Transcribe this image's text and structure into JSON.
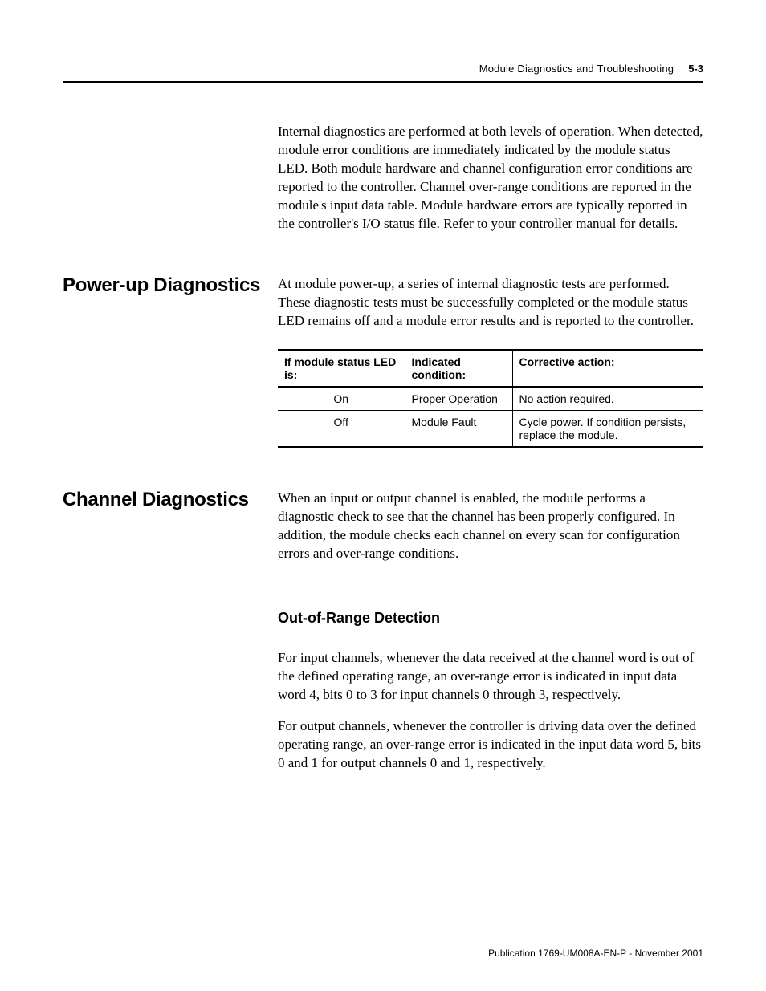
{
  "header": {
    "running_title": "Module Diagnostics and Troubleshooting",
    "page_number": "5-3"
  },
  "intro": {
    "paragraph": "Internal diagnostics are performed at both levels of operation. When detected, module error conditions are immediately indicated by the module status LED. Both module hardware and channel configuration error conditions are reported to the controller. Channel over-range conditions are reported in the module's input data table. Module hardware errors are typically reported in the controller's I/O status file. Refer to your controller manual for details."
  },
  "powerup": {
    "heading": "Power-up Diagnostics",
    "paragraph": "At module power-up, a series of internal diagnostic tests are performed. These diagnostic tests must be successfully completed or the module status LED remains off and a module error results and is reported to the controller.",
    "table": {
      "columns": [
        "If module status LED is:",
        "Indicated condition:",
        "Corrective action:"
      ],
      "rows": [
        [
          "On",
          "Proper Operation",
          "No action required."
        ],
        [
          "Off",
          "Module Fault",
          "Cycle power. If condition persists, replace the module."
        ]
      ]
    }
  },
  "channel": {
    "heading": "Channel Diagnostics",
    "paragraph": "When an input or output channel is enabled, the module performs a diagnostic check to see that the channel has been properly configured. In addition, the module checks each channel on every scan for configuration errors and over-range conditions.",
    "sub_heading": "Out-of-Range Detection",
    "sub_p1": "For input channels, whenever the data received at the channel word is out of the defined operating range, an over-range error is indicated in input data word 4, bits 0 to 3 for input channels 0 through 3, respectively.",
    "sub_p2": "For output channels, whenever the controller is driving data over the defined operating range, an over-range error is indicated in the input data word 5, bits 0 and 1 for output channels 0 and 1, respectively."
  },
  "footer": {
    "publine": "Publication 1769-UM008A-EN-P - November 2001"
  }
}
